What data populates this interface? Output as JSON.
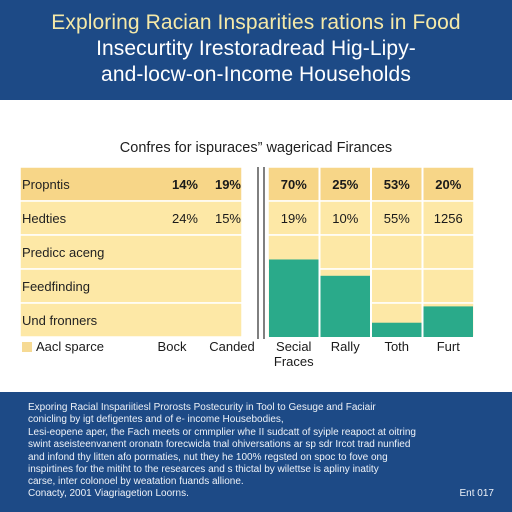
{
  "header": {
    "title_lines": [
      "Exploring Racian Insparities rations in Food",
      "Insecurtity Irestoradread Hig-Lipy-",
      "and-locw-on-Income Households"
    ]
  },
  "chart_data": {
    "type": "table",
    "title": "Confres for ispuraces” wagericad Firances",
    "row_labels": [
      "Propntis",
      "Hedties",
      "Predicc aceng",
      "Feedfinding",
      "Und fronners"
    ],
    "left_columns": [
      "Bock",
      "Canded"
    ],
    "left_values": [
      [
        "14%",
        "19%"
      ],
      [
        "24%",
        "15%"
      ]
    ],
    "right_columns": [
      "Secial\nFraces",
      "Rally",
      "Toth",
      "Furt"
    ],
    "right_values": [
      [
        "70%",
        "25%",
        "53%",
        "20%"
      ],
      [
        "19%",
        "10%",
        "55%",
        "1256"
      ]
    ],
    "right_bars": [
      {
        "column": "Secial\nFraces",
        "level": 0.76
      },
      {
        "column": "Rally",
        "level": 0.6
      },
      {
        "column": "Toth",
        "level": 0.14
      },
      {
        "column": "Furt",
        "level": 0.3
      }
    ],
    "legend": {
      "label": "Aacl sparce",
      "color": "#f6da94"
    },
    "colors": {
      "cell": "#fde8a6",
      "header_row": "#f7d688",
      "bar": "#2aaa8a",
      "line": "#2b2b2b"
    }
  },
  "footer": {
    "lines": [
      "Exporing Racial Inspariitiesl Prorosts Postecurity in Tool to Gesuge and Faciair",
      "conicling by igt defigentes and of e- income Housebodies,",
      "Lesi-eopene aper, the Fach meets or cmmplier whe II sudcatt of syiple reapoct at oitring",
      "swint aseisteenvanent oronatn forecwicla tnal ohiversations ar sp sdr Ircot trad nunfied",
      "and infond thy litten afo pormaties, nut they he 100% regsted on spoc to fove ong",
      "inspirtines for the mitiht to the researces and s thictal by wilettse is apliny inatity",
      "carse, inter colonoel by weatation fuands allione."
    ],
    "credit": "Conacty, 2001 Viagriagetion Loorns.",
    "page": "Ent 017"
  }
}
